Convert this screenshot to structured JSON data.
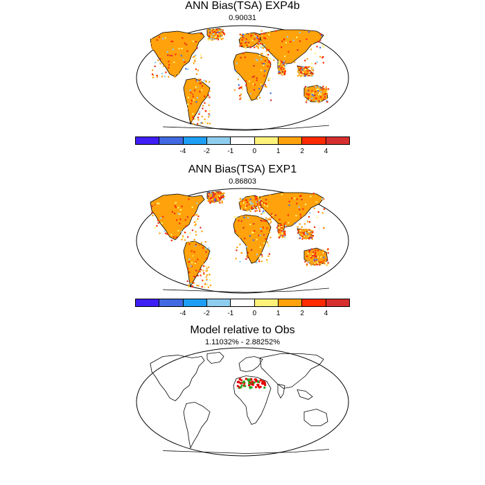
{
  "panels": [
    {
      "title": "ANN Bias(TSA) EXP4b",
      "subtitle": "0.90031"
    },
    {
      "title": "ANN Bias(TSA) EXP1",
      "subtitle": "0.86803"
    },
    {
      "title": "Model relative to Obs",
      "subtitle": "1.11032% - 2.88252%"
    }
  ],
  "colorbar": {
    "colors": [
      "#3e1ef4",
      "#4169e1",
      "#1e9ff5",
      "#8fcdee",
      "#ffffff",
      "#fff27a",
      "#ffa20c",
      "#ff2a00",
      "#d62f2f"
    ],
    "tick_labels": [
      "-4",
      "-2",
      "-1",
      "0",
      "1",
      "2",
      "4"
    ]
  },
  "legend_colors": {
    "red": "#e60000",
    "green": "#22aa22"
  }
}
